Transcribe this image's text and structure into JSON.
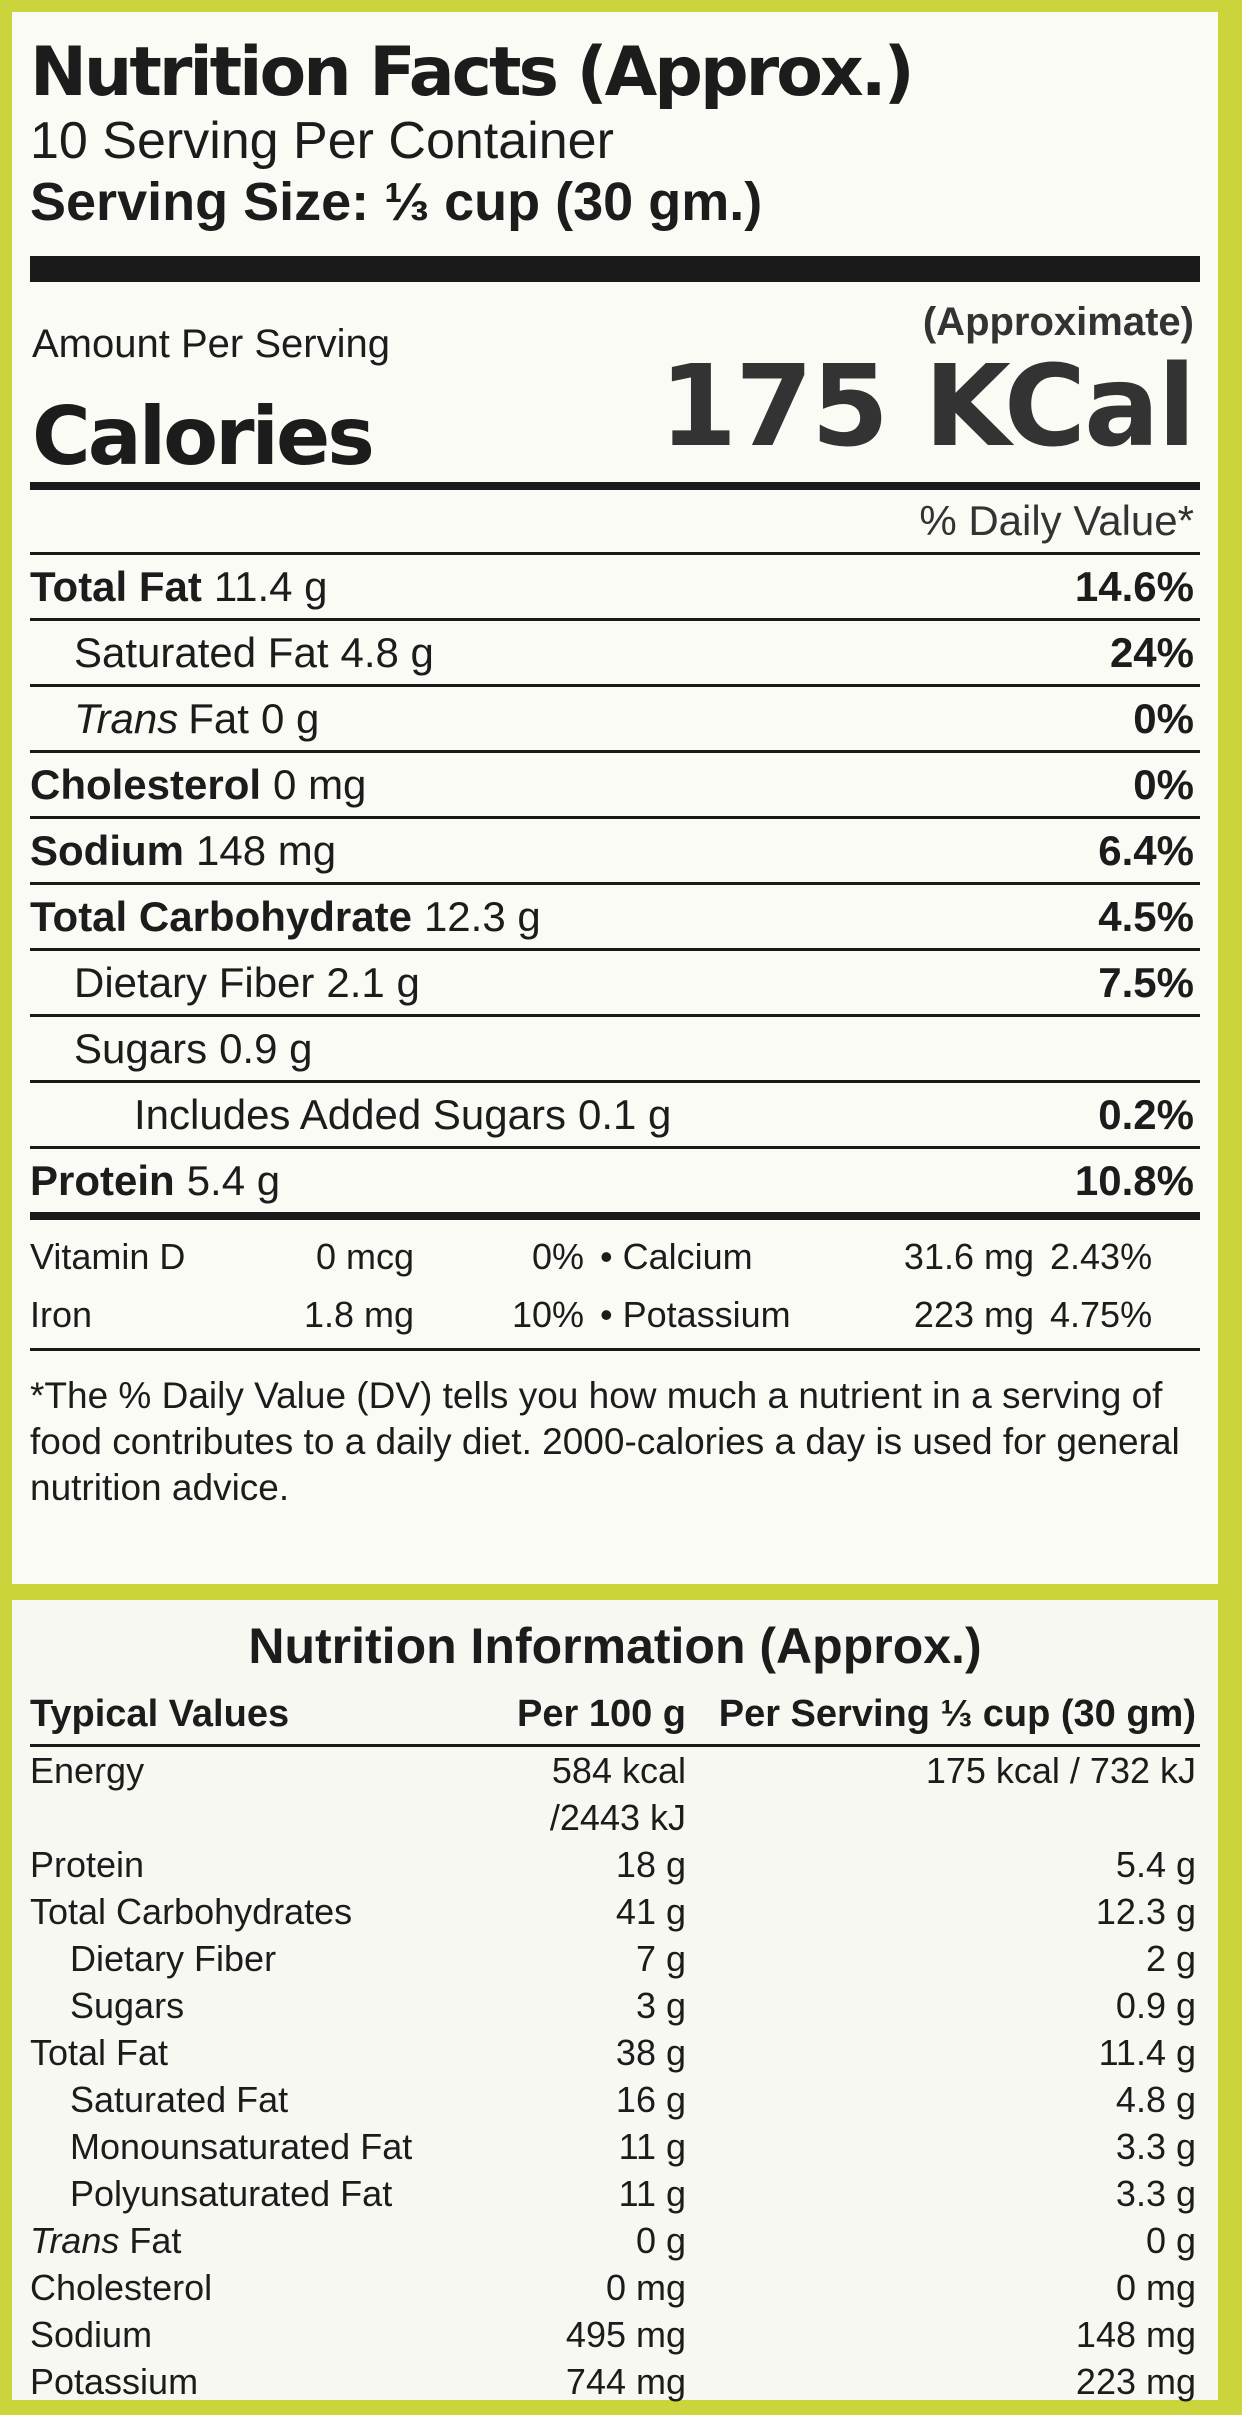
{
  "label": {
    "title": "Nutrition Facts (Approx.)",
    "servings": "10 Serving Per Container",
    "serving_size": "Serving Size: ⅓ cup (30 gm.)",
    "amount_per_serving": "Amount Per Serving",
    "approximate": "(Approximate)",
    "calories_label": "Calories",
    "calories_value": "175 KCal",
    "dv_header": "% Daily Value*",
    "nutrients": [
      {
        "name": "Total Fat",
        "amount": "11.4 g",
        "dv": "14.6%"
      },
      {
        "name": "Saturated Fat",
        "amount": "4.8 g",
        "dv": "24%"
      },
      {
        "italic": "Trans",
        "name": "Fat",
        "amount": "0 g",
        "dv": "0%"
      },
      {
        "name": "Cholesterol",
        "amount": "0 mg",
        "dv": "0%"
      },
      {
        "name": "Sodium",
        "amount": "148 mg",
        "dv": "6.4%"
      },
      {
        "name": "Total Carbohydrate",
        "amount": "12.3 g",
        "dv": "4.5%"
      },
      {
        "name": "Dietary Fiber",
        "amount": "2.1 g",
        "dv": "7.5%"
      },
      {
        "name": "Sugars",
        "amount": "0.9 g"
      },
      {
        "name": "Includes Added Sugars",
        "amount": "0.1 g",
        "dv": "0.2%"
      },
      {
        "name": "Protein",
        "amount": "5.4 g",
        "dv": "10.8%"
      }
    ],
    "minerals": [
      {
        "name": "Vitamin D",
        "amount": "0 mcg",
        "dv": "0%"
      },
      {
        "name": "Calcium",
        "amount": "31.6 mg",
        "dv": "2.43%"
      },
      {
        "name": "Iron",
        "amount": "1.8 mg",
        "dv": "10%"
      },
      {
        "name": "Potassium",
        "amount": "223 mg",
        "dv": "4.75%"
      }
    ],
    "footnote": "*The % Daily Value (DV) tells you how much a nutrient in a serving of food contributes to a daily diet.  2000-calories a day is used for general nutrition advice."
  },
  "info": {
    "title": "Nutrition Information (Approx.)",
    "headers": [
      "Typical Values",
      "Per 100 g",
      "Per Serving ⅓ cup (30 gm)"
    ],
    "rows": [
      {
        "name": "Energy",
        "per_100g": "584 kcal /2443 kJ",
        "per_serving": "175 kcal / 732 kJ"
      },
      {
        "name": "Protein",
        "per_100g": "18 g",
        "per_serving": "5.4 g"
      },
      {
        "name": "Total Carbohydrates",
        "per_100g": "41 g",
        "per_serving": "12.3 g"
      },
      {
        "name": "Dietary Fiber",
        "per_100g": "7 g",
        "per_serving": "2 g"
      },
      {
        "name": "Sugars",
        "per_100g": "3 g",
        "per_serving": "0.9 g"
      },
      {
        "name": "Total Fat",
        "per_100g": "38 g",
        "per_serving": "11.4 g"
      },
      {
        "name": "Saturated Fat",
        "per_100g": "16 g",
        "per_serving": "4.8 g"
      },
      {
        "name": "Monounsaturated Fat",
        "per_100g": "11 g",
        "per_serving": "3.3 g"
      },
      {
        "name": "Polyunsaturated Fat",
        "per_100g": "11 g",
        "per_serving": "3.3 g"
      },
      {
        "italic": "Trans",
        "name": "Fat",
        "per_100g": "0 g",
        "per_serving": "0 g"
      },
      {
        "name": "Cholesterol",
        "per_100g": "0 mg",
        "per_serving": "0 mg"
      },
      {
        "name": "Sodium",
        "per_100g": "495 mg",
        "per_serving": "148 mg"
      },
      {
        "name": "Potassium",
        "per_100g": "744 mg",
        "per_serving": "223 mg"
      }
    ]
  }
}
